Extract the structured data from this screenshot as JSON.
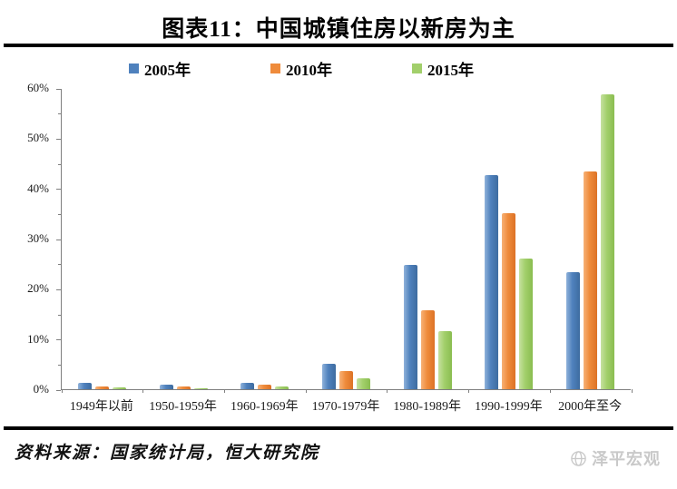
{
  "title": "图表11：中国城镇住房以新房为主",
  "source": "资料来源：国家统计局，恒大研究院",
  "watermark": {
    "text": "泽平宏观",
    "icon": "globe-icon",
    "color": "#c9c9c9"
  },
  "colors": {
    "axis": "#7f7f7f",
    "divider": "#000000"
  },
  "chart_data": {
    "type": "bar",
    "title": "图表11：中国城镇住房以新房为主",
    "categories": [
      "1949年以前",
      "1950-1959年",
      "1960-1969年",
      "1970-1979年",
      "1980-1989年",
      "1990-1999年",
      "2000年至今"
    ],
    "series": [
      {
        "name": "2005年",
        "color": "#4F81BD",
        "color_light": "#8FB2DA",
        "color_dark": "#3E6CA0",
        "values": [
          1.2,
          0.9,
          1.3,
          5.0,
          24.8,
          42.7,
          23.4
        ]
      },
      {
        "name": "2010年",
        "color": "#EF8B3B",
        "color_light": "#F7B176",
        "color_dark": "#DC7226",
        "values": [
          0.6,
          0.5,
          0.9,
          3.6,
          15.7,
          35.0,
          43.3
        ]
      },
      {
        "name": "2015年",
        "color": "#A2CF6B",
        "color_light": "#C6E1A0",
        "color_dark": "#8ABD50",
        "values": [
          0.3,
          0.2,
          0.5,
          2.1,
          11.5,
          26.1,
          58.8
        ]
      }
    ],
    "xlabel": "",
    "ylabel": "",
    "ylim": [
      0,
      60
    ],
    "ytick_step": 10,
    "ytick_minor_step": 5,
    "ytick_labels": [
      "0%",
      "10%",
      "20%",
      "30%",
      "40%",
      "50%",
      "60%"
    ],
    "legend_position": "top",
    "grid": false
  }
}
